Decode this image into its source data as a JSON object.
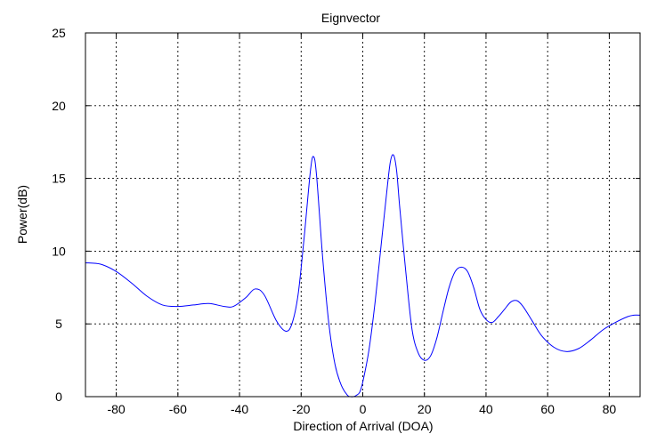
{
  "chart_data": {
    "type": "line",
    "title": "Eignvector",
    "xlabel": "Direction of Arrival (DOA)",
    "ylabel": "Power(dB)",
    "xlim": [
      -90,
      90
    ],
    "ylim": [
      0,
      25
    ],
    "xticks": [
      -80,
      -60,
      -40,
      -20,
      0,
      20,
      40,
      60,
      80
    ],
    "yticks": [
      0,
      5,
      10,
      15,
      20,
      25
    ],
    "grid": true,
    "line_color": "#0000ff",
    "series": [
      {
        "x": [
          -90,
          -85,
          -80,
          -75,
          -70,
          -65,
          -60,
          -55,
          -50,
          -45,
          -42,
          -38,
          -35,
          -32,
          -28,
          -25,
          -23,
          -21,
          -19,
          -17,
          -16,
          -15,
          -13,
          -11,
          -9,
          -7,
          -5,
          -4,
          -3,
          -2,
          -1,
          0,
          2,
          4,
          6,
          8,
          9,
          10,
          11,
          12,
          14,
          16,
          18,
          20,
          22,
          24,
          26,
          28,
          30,
          32,
          34,
          36,
          38,
          40,
          42,
          44,
          46,
          48,
          50,
          52,
          55,
          58,
          62,
          66,
          70,
          74,
          78,
          82,
          86,
          88,
          90
        ],
        "y": [
          9.2,
          9.1,
          8.6,
          7.8,
          6.9,
          6.3,
          6.2,
          6.3,
          6.4,
          6.2,
          6.2,
          6.8,
          7.4,
          7.0,
          5.2,
          4.5,
          5.0,
          7.0,
          11.0,
          15.5,
          16.5,
          15.2,
          9.5,
          5.0,
          2.2,
          0.8,
          0.1,
          0.0,
          0.0,
          0.1,
          0.3,
          1.0,
          3.2,
          6.5,
          10.5,
          14.5,
          16.2,
          16.6,
          15.5,
          13.0,
          8.5,
          4.6,
          3.0,
          2.5,
          2.8,
          4.0,
          5.8,
          7.5,
          8.6,
          8.9,
          8.6,
          7.5,
          6.0,
          5.3,
          5.1,
          5.5,
          6.0,
          6.5,
          6.6,
          6.2,
          5.2,
          4.2,
          3.4,
          3.1,
          3.3,
          3.9,
          4.6,
          5.1,
          5.5,
          5.6,
          5.6
        ]
      }
    ]
  }
}
